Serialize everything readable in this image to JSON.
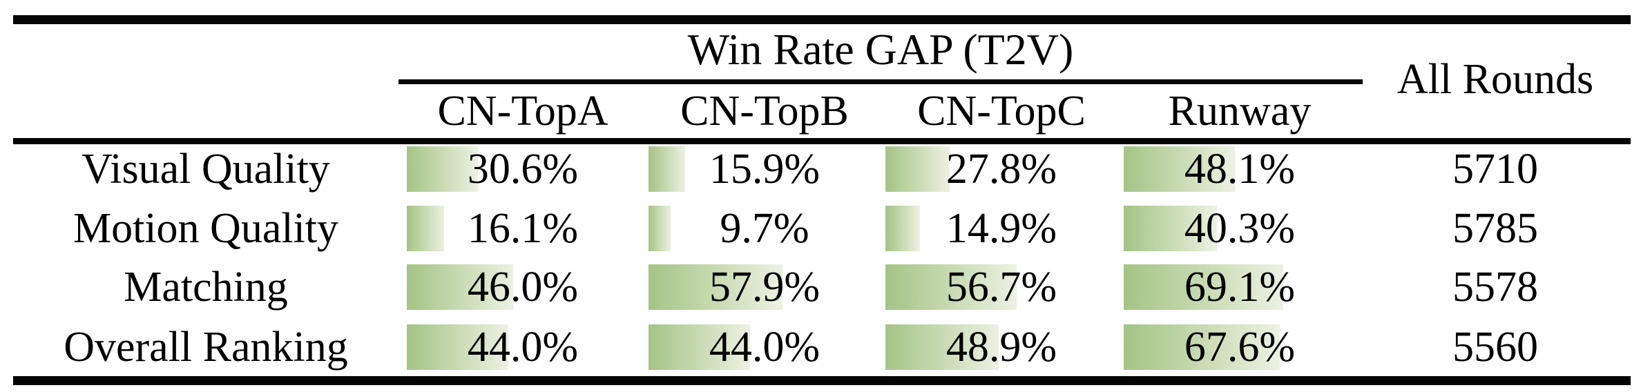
{
  "table": {
    "group_header": "Win Rate GAP (T2V)",
    "all_rounds_header": "All Rounds",
    "columns": [
      "CN-TopA",
      "CN-TopB",
      "CN-TopC",
      "Runway"
    ],
    "rows": [
      {
        "label": "Visual Quality",
        "values": [
          30.6,
          15.9,
          27.8,
          48.1
        ],
        "value_labels": [
          "30.6%",
          "15.9%",
          "27.8%",
          "48.1%"
        ],
        "all_rounds": "5710"
      },
      {
        "label": "Motion Quality",
        "values": [
          16.1,
          9.7,
          14.9,
          40.3
        ],
        "value_labels": [
          "16.1%",
          "9.7%",
          "14.9%",
          "40.3%"
        ],
        "all_rounds": "5785"
      },
      {
        "label": "Matching",
        "values": [
          46.0,
          57.9,
          56.7,
          69.1
        ],
        "value_labels": [
          "46.0%",
          "57.9%",
          "56.7%",
          "69.1%"
        ],
        "all_rounds": "5578"
      },
      {
        "label": "Overall Ranking",
        "values": [
          44.0,
          44.0,
          48.9,
          67.6
        ],
        "value_labels": [
          "44.0%",
          "44.0%",
          "48.9%",
          "67.6%"
        ],
        "all_rounds": "5560"
      }
    ],
    "colors": {
      "bar_gradient_start": "#a4c486",
      "bar_gradient_end": "#edf1e3",
      "rule": "#050505",
      "text": "#000000"
    }
  }
}
